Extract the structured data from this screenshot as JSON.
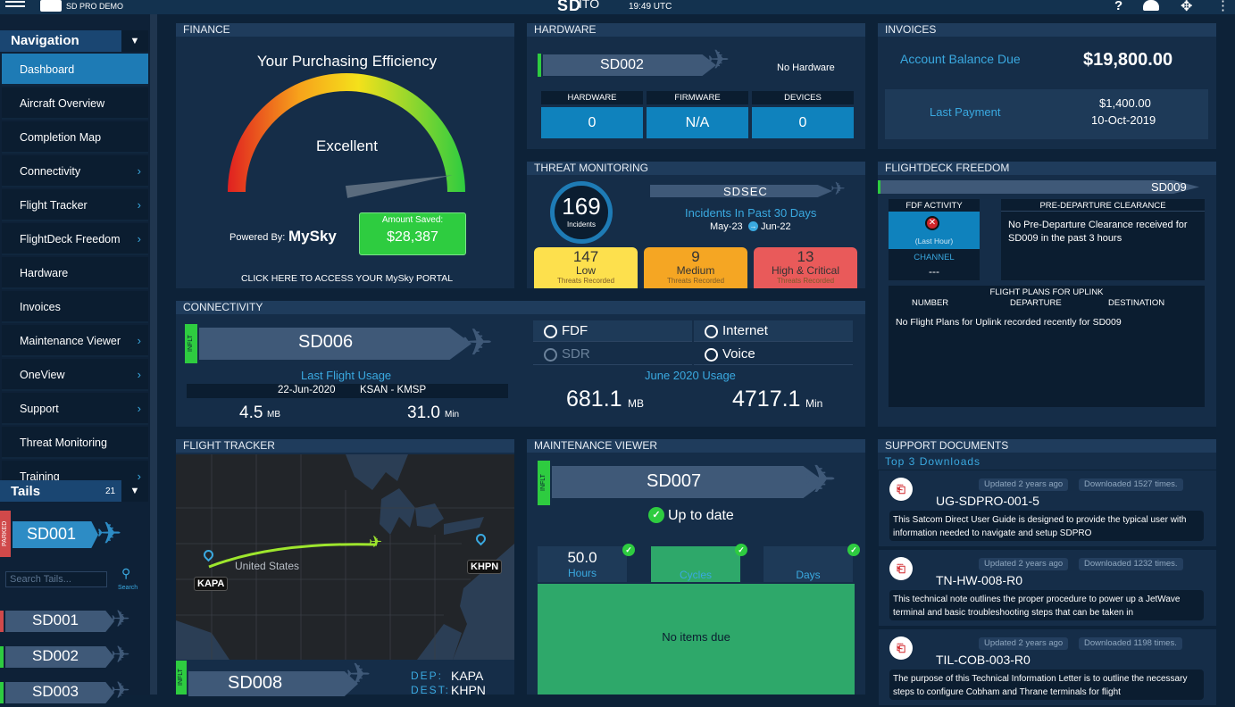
{
  "topbar": {
    "app_name": "SD PRO DEMO",
    "logo": "SD",
    "time": "19:49 UTC"
  },
  "navigation": {
    "title": "Navigation",
    "items": [
      {
        "label": "Dashboard",
        "chevron": false,
        "active": true
      },
      {
        "label": "Aircraft Overview",
        "chevron": false
      },
      {
        "label": "Completion Map",
        "chevron": false
      },
      {
        "label": "Connectivity",
        "chevron": true
      },
      {
        "label": "Flight Tracker",
        "chevron": true
      },
      {
        "label": "FlightDeck Freedom",
        "chevron": true
      },
      {
        "label": "Hardware",
        "chevron": false
      },
      {
        "label": "Invoices",
        "chevron": false
      },
      {
        "label": "Maintenance Viewer",
        "chevron": true
      },
      {
        "label": "OneView",
        "chevron": true
      },
      {
        "label": "Support",
        "chevron": true
      },
      {
        "label": "Threat Monitoring",
        "chevron": false
      },
      {
        "label": "Training",
        "chevron": true
      }
    ]
  },
  "tails": {
    "title": "Tails",
    "count": "21",
    "selected": "SD001",
    "selected_status": "PARKED",
    "search_placeholder": "Search Tails...",
    "search_label": "Search",
    "list": [
      "SD001",
      "SD002",
      "SD003"
    ]
  },
  "finance": {
    "header": "FINANCE",
    "title": "Your Purchasing Efficiency",
    "rating": "Excellent",
    "powered_by": "Powered By:",
    "brand": "MySky",
    "amount_label": "Amount Saved:",
    "amount_value": "$28,387",
    "portal_link": "CLICK HERE TO ACCESS YOUR MySky PORTAL",
    "gauge_fraction": 0.95
  },
  "hardware": {
    "header": "HARDWARE",
    "tail": "SD002",
    "status": "No Hardware",
    "cells": [
      {
        "label": "HARDWARE",
        "value": "0"
      },
      {
        "label": "FIRMWARE",
        "value": "N/A"
      },
      {
        "label": "DEVICES",
        "value": "0"
      }
    ]
  },
  "invoices": {
    "header": "INVOICES",
    "balance_label": "Account Balance Due",
    "balance_value": "$19,800.00",
    "last_payment_label": "Last Payment",
    "last_payment_value": "$1,400.00",
    "last_payment_date": "10-Oct-2019"
  },
  "threat": {
    "header": "THREAT MONITORING",
    "incidents": "169",
    "incidents_label": "Incidents",
    "tail": "SDSEC",
    "past_label": "Incidents In Past 30 Days",
    "date_from": "May-23",
    "date_to": "Jun-22",
    "levels": [
      {
        "value": "147",
        "label": "Low",
        "sub": "Threats Recorded",
        "color": "#fde04d"
      },
      {
        "value": "9",
        "label": "Medium",
        "sub": "Threats Recorded",
        "color": "#f5a623"
      },
      {
        "value": "13",
        "label": "High & Critical",
        "sub": "Threats Recorded",
        "color": "#e95a5a"
      }
    ]
  },
  "fdf": {
    "header": "FLIGHTDECK FREEDOM",
    "tail": "SD009",
    "activity_title": "FDF ACTIVITY",
    "activity_sub": "(Last Hour)",
    "channel_label": "CHANNEL",
    "channel_value": "---",
    "pdc_title": "PRE-DEPARTURE CLEARANCE",
    "pdc_text": "No Pre-Departure Clearance received for SD009 in the past 3 hours",
    "plans_title": "FLIGHT PLANS FOR UPLINK",
    "cols": [
      "NUMBER",
      "DEPARTURE",
      "DESTINATION"
    ],
    "plans_text": "No Flight Plans for Uplink recorded recently for SD009"
  },
  "connectivity": {
    "header": "CONNECTIVITY",
    "status": "INFLT",
    "tail": "SD006",
    "usage_label": "Last Flight Usage",
    "date": "22-Jun-2020",
    "route": "KSAN - KMSP",
    "data_value": "4.5",
    "data_unit": "MB",
    "time_value": "31.0",
    "time_unit": "Min",
    "services": [
      {
        "label": "FDF",
        "enabled": true
      },
      {
        "label": "Internet",
        "enabled": true
      },
      {
        "label": "SDR",
        "enabled": false
      },
      {
        "label": "Voice",
        "enabled": true
      }
    ],
    "month_label": "June 2020 Usage",
    "month_data": "681.1",
    "month_data_unit": "MB",
    "month_time": "4717.1",
    "month_time_unit": "Min"
  },
  "tracker": {
    "header": "FLIGHT TRACKER",
    "origin": "KAPA",
    "dest": "KHPN",
    "country": "United States",
    "status": "INFLT",
    "tail": "SD008",
    "dep_label": "DEP:",
    "dest_label": "DEST:"
  },
  "maintenance": {
    "header": "MAINTENANCE VIEWER",
    "status": "INFLT",
    "tail": "SD007",
    "state": "Up to date",
    "hours_value": "50.0",
    "hours_label": "Hours",
    "cycles_label": "Cycles",
    "days_label": "Days",
    "empty": "No items due"
  },
  "support": {
    "header": "SUPPORT DOCUMENTS",
    "sub": "Top 3 Downloads",
    "docs": [
      {
        "title": "UG-SDPRO-001-5",
        "updated": "Updated 2 years ago",
        "downloads": "Downloaded 1527 times.",
        "desc": "This Satcom Direct User Guide is designed to provide the typical user with information needed to navigate and setup SDPRO"
      },
      {
        "title": "TN-HW-008-R0",
        "updated": "Updated 2 years ago",
        "downloads": "Downloaded 1232 times.",
        "desc": "This technical note outlines the proper procedure to power up a JetWave terminal and basic troubleshooting steps that can be taken in"
      },
      {
        "title": "TIL-COB-003-R0",
        "updated": "Updated 2 years ago",
        "downloads": "Downloaded 1198 times.",
        "desc": "The purpose of this Technical Information Letter is to outline the necessary steps to configure Cobham and Thrane terminals for flight"
      }
    ]
  },
  "colors": {
    "accent": "#1e7bb5",
    "green": "#2ecc40",
    "panel": "#152d48",
    "bg": "#0d2238"
  }
}
